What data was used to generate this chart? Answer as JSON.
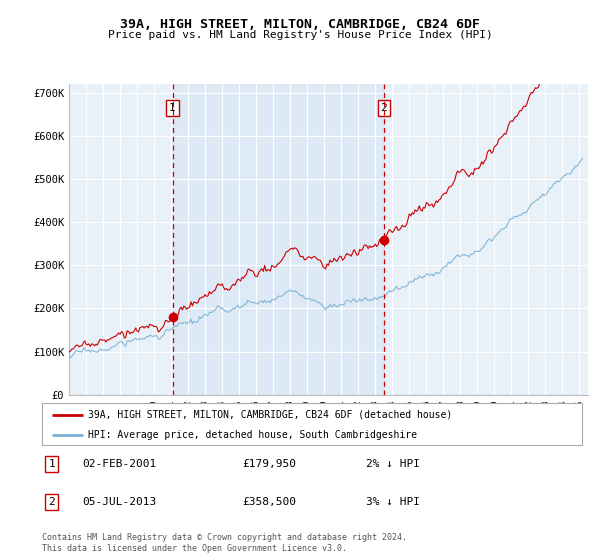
{
  "title": "39A, HIGH STREET, MILTON, CAMBRIDGE, CB24 6DF",
  "subtitle": "Price paid vs. HM Land Registry's House Price Index (HPI)",
  "ylim": [
    0,
    720000
  ],
  "yticks": [
    0,
    100000,
    200000,
    300000,
    400000,
    500000,
    600000,
    700000
  ],
  "ytick_labels": [
    "£0",
    "£100K",
    "£200K",
    "£300K",
    "£400K",
    "£500K",
    "£600K",
    "£700K"
  ],
  "xlim_start": 1995.0,
  "xlim_end": 2025.5,
  "plot_bg": "#e8f0f8",
  "grid_color": "#ffffff",
  "sale1_date": 2001.085,
  "sale1_price": 179950,
  "sale2_date": 2013.5,
  "sale2_price": 358500,
  "legend_label_red": "39A, HIGH STREET, MILTON, CAMBRIDGE, CB24 6DF (detached house)",
  "legend_label_blue": "HPI: Average price, detached house, South Cambridgeshire",
  "annotation1_label": "1",
  "annotation1_date": "02-FEB-2001",
  "annotation1_price": "£179,950",
  "annotation1_hpi": "2% ↓ HPI",
  "annotation2_label": "2",
  "annotation2_date": "05-JUL-2013",
  "annotation2_price": "£358,500",
  "annotation2_hpi": "3% ↓ HPI",
  "footer": "Contains HM Land Registry data © Crown copyright and database right 2024.\nThis data is licensed under the Open Government Licence v3.0.",
  "red_color": "#cc0000",
  "blue_color": "#7ab0d4",
  "dashed_color": "#cc0000"
}
